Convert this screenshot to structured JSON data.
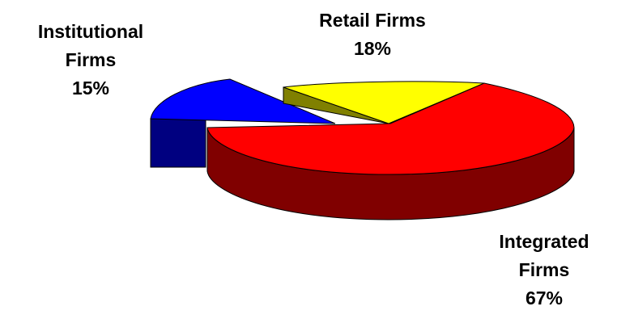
{
  "chart_data": {
    "type": "pie",
    "style": "3d-exploded",
    "slices": [
      {
        "name": "Integrated Firms",
        "value": 67,
        "label": "67%",
        "name_lines": [
          "Integrated",
          "Firms"
        ],
        "color": "#ff0000",
        "side_color": "#800000"
      },
      {
        "name": "Institutional Firms",
        "value": 15,
        "label": "15%",
        "name_lines": [
          "Institutional",
          "Firms"
        ],
        "color": "#0000ff",
        "side_color": "#000080"
      },
      {
        "name": "Retail Firms",
        "value": 18,
        "label": "18%",
        "name_lines": [
          "Retail Firms"
        ],
        "color": "#ffff00",
        "side_color": "#808000"
      }
    ],
    "legend": "none"
  }
}
